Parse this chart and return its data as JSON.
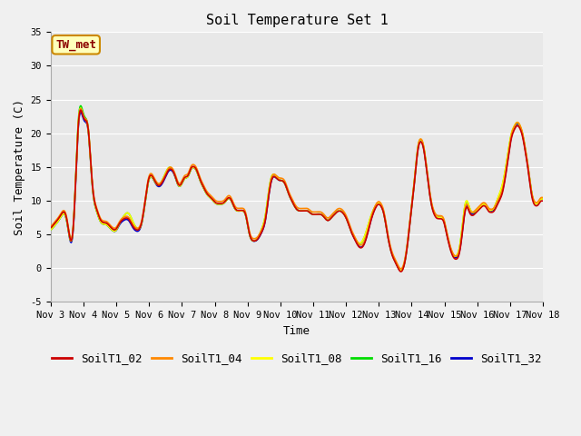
{
  "title": "Soil Temperature Set 1",
  "xlabel": "Time",
  "ylabel": "Soil Temperature (C)",
  "ylim": [
    -5,
    35
  ],
  "annotation": "TW_met",
  "plot_bg": "#e8e8e8",
  "fig_bg": "#f0f0f0",
  "grid_color": "#ffffff",
  "series_colors": {
    "SoilT1_02": "#cc0000",
    "SoilT1_04": "#ff8800",
    "SoilT1_08": "#ffff00",
    "SoilT1_16": "#00dd00",
    "SoilT1_32": "#0000cc"
  },
  "xtick_labels": [
    "Nov 3",
    "Nov 4",
    "Nov 5",
    "Nov 6",
    "Nov 7",
    "Nov 8",
    "Nov 9",
    "Nov 10",
    "Nov 11",
    "Nov 12",
    "Nov 13",
    "Nov 14",
    "Nov 15",
    "Nov 16",
    "Nov 17",
    "Nov 18"
  ],
  "ytick_values": [
    -5,
    0,
    5,
    10,
    15,
    20,
    25,
    30,
    35
  ],
  "line_width": 1.2,
  "title_fontsize": 11,
  "label_fontsize": 9,
  "tick_fontsize": 7.5,
  "annot_fontsize": 9,
  "legend_fontsize": 9
}
